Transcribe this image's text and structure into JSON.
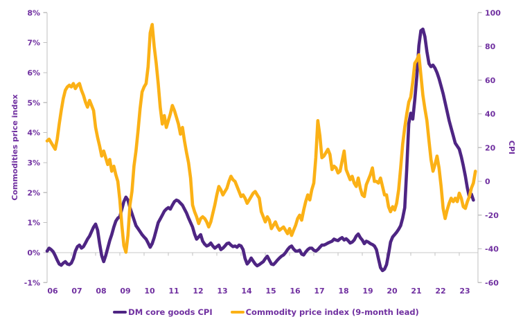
{
  "chart_data": {
    "type": "line",
    "title": "",
    "grid": "zero-line-only",
    "legend_position": "bottom-center",
    "x_axis": {
      "labels": [
        "06",
        "07",
        "08",
        "09",
        "10",
        "11",
        "12",
        "13",
        "14",
        "15",
        "16",
        "17",
        "18",
        "19",
        "20",
        "21",
        "22",
        "23"
      ],
      "start_year": 2006,
      "frequency": "monthly"
    },
    "left_axis": {
      "title": "Commodities price index",
      "min": -1,
      "max": 8,
      "tick_step": 1,
      "tick_labels": [
        "8%",
        "7%",
        "6%",
        "5%",
        "4%",
        "3%",
        "2%",
        "1%",
        "0%",
        "-1%"
      ]
    },
    "right_axis": {
      "title": "CPI",
      "min": -60,
      "max": 100,
      "tick_step": 20,
      "tick_labels": [
        "100",
        "80",
        "60",
        "40",
        "20",
        "0",
        "-20",
        "-40",
        "-60"
      ]
    },
    "colors": {
      "dm_core_cpi": "#4E2583",
      "commodity_index": "#FBB116",
      "axis_line": "#BFBFBF",
      "zero_line": "#C9C9C9",
      "label_text": "#7030A0"
    },
    "series": [
      {
        "name": "DM core goods CPI",
        "axis": "left",
        "color": "#4E2583",
        "start": "2006-01",
        "values": [
          0.05,
          0.15,
          0.1,
          0.03,
          -0.1,
          -0.25,
          -0.38,
          -0.42,
          -0.35,
          -0.3,
          -0.38,
          -0.4,
          -0.35,
          -0.2,
          0.05,
          0.2,
          0.25,
          0.15,
          0.2,
          0.32,
          0.45,
          0.55,
          0.7,
          0.85,
          0.95,
          0.75,
          0.3,
          -0.1,
          -0.3,
          -0.1,
          0.15,
          0.4,
          0.6,
          0.85,
          1.05,
          1.15,
          1.2,
          1.45,
          1.7,
          1.85,
          1.75,
          1.5,
          1.3,
          1.1,
          0.9,
          0.8,
          0.7,
          0.6,
          0.52,
          0.45,
          0.32,
          0.18,
          0.3,
          0.5,
          0.75,
          1.0,
          1.12,
          1.25,
          1.38,
          1.45,
          1.5,
          1.45,
          1.58,
          1.7,
          1.75,
          1.72,
          1.65,
          1.58,
          1.45,
          1.32,
          1.15,
          1.0,
          0.85,
          0.62,
          0.45,
          0.52,
          0.6,
          0.38,
          0.28,
          0.22,
          0.25,
          0.32,
          0.22,
          0.15,
          0.2,
          0.25,
          0.1,
          0.15,
          0.22,
          0.3,
          0.32,
          0.25,
          0.2,
          0.22,
          0.18,
          0.25,
          0.22,
          0.1,
          -0.2,
          -0.38,
          -0.3,
          -0.18,
          -0.28,
          -0.38,
          -0.44,
          -0.4,
          -0.35,
          -0.3,
          -0.2,
          -0.12,
          -0.25,
          -0.38,
          -0.4,
          -0.33,
          -0.25,
          -0.18,
          -0.12,
          -0.08,
          0.0,
          0.1,
          0.18,
          0.22,
          0.12,
          0.05,
          0.05,
          0.08,
          -0.05,
          -0.08,
          0.02,
          0.1,
          0.15,
          0.15,
          0.08,
          0.05,
          0.1,
          0.18,
          0.25,
          0.25,
          0.28,
          0.32,
          0.35,
          0.38,
          0.45,
          0.42,
          0.4,
          0.46,
          0.5,
          0.42,
          0.46,
          0.4,
          0.32,
          0.35,
          0.42,
          0.55,
          0.62,
          0.5,
          0.42,
          0.3,
          0.38,
          0.35,
          0.3,
          0.27,
          0.22,
          0.1,
          -0.2,
          -0.5,
          -0.6,
          -0.55,
          -0.4,
          -0.05,
          0.35,
          0.52,
          0.6,
          0.68,
          0.78,
          0.9,
          1.15,
          1.5,
          2.8,
          4.3,
          4.65,
          4.45,
          5.1,
          5.9,
          6.9,
          7.4,
          7.45,
          7.2,
          6.7,
          6.3,
          6.2,
          6.25,
          6.15,
          6.0,
          5.8,
          5.55,
          5.3,
          5.0,
          4.7,
          4.4,
          4.15,
          3.9,
          3.65,
          3.55,
          3.45,
          3.2,
          2.9,
          2.55,
          2.15,
          1.85,
          1.95,
          1.75
        ]
      },
      {
        "name": "Commodity price index (9-month lead)",
        "axis": "right",
        "color": "#FBB116",
        "start": "2006-01",
        "values": [
          24,
          25,
          23,
          21,
          19,
          25,
          34,
          42,
          49,
          54,
          56,
          57,
          56,
          58,
          55,
          57,
          58,
          54,
          51,
          47,
          44,
          48,
          45,
          42,
          32,
          26,
          21,
          15,
          18,
          14,
          10,
          13,
          6,
          9,
          4,
          0,
          -11,
          -26,
          -38,
          -42,
          -32,
          -14,
          -6,
          9,
          18,
          30,
          43,
          53,
          56,
          58,
          68,
          88,
          93,
          80,
          70,
          58,
          44,
          34,
          39,
          32,
          36,
          40,
          45,
          42,
          38,
          34,
          28,
          32,
          24,
          17,
          11,
          2,
          -14,
          -18,
          -21,
          -25,
          -22,
          -21,
          -22,
          -24,
          -27,
          -24,
          -19,
          -14,
          -8,
          -3,
          -5,
          -8,
          -6,
          -4,
          0,
          3,
          1,
          0,
          -3,
          -6,
          -9,
          -8,
          -10,
          -13,
          -11,
          -9,
          -7,
          -6,
          -8,
          -10,
          -18,
          -21,
          -24,
          -21,
          -23,
          -28,
          -26,
          -24,
          -27,
          -29,
          -28,
          -27,
          -29,
          -31,
          -28,
          -32,
          -29,
          -26,
          -22,
          -20,
          -23,
          -17,
          -12,
          -8,
          -11,
          -5,
          -1,
          14,
          36,
          27,
          14,
          15,
          17,
          19,
          16,
          7,
          9,
          8,
          5,
          6,
          12,
          18,
          7,
          4,
          1,
          3,
          -1,
          -3,
          2,
          -4,
          -8,
          -9,
          -2,
          1,
          4,
          8,
          0,
          0,
          -1,
          2,
          -3,
          -8,
          -8,
          -15,
          -18,
          -15,
          -17,
          -13,
          -5,
          8,
          22,
          32,
          40,
          47,
          50,
          59,
          70,
          72,
          75,
          63,
          51,
          43,
          36,
          24,
          13,
          6,
          10,
          15,
          8,
          -3,
          -16,
          -22,
          -17,
          -13,
          -10,
          -12,
          -10,
          -12,
          -7,
          -10,
          -15,
          -16,
          -12,
          -9,
          -4,
          -1,
          6
        ]
      }
    ]
  }
}
